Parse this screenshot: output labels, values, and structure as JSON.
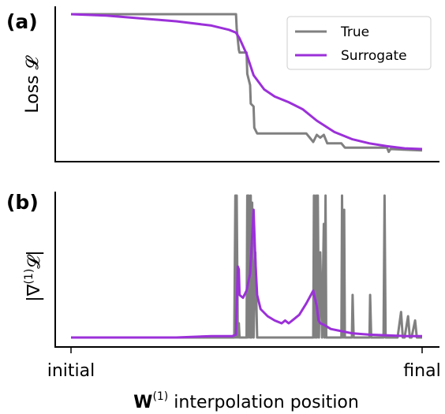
{
  "colors": {
    "true_series": "#808080",
    "surrogate_series": "#9b30d9",
    "axes": "#000000"
  },
  "legend": {
    "position": "top-right",
    "entries": [
      "True",
      "Surrogate"
    ]
  },
  "chart_data": [
    {
      "panel": "(a)",
      "type": "line",
      "ylabel": "Loss 𝓛",
      "x_tick_labels": [],
      "xlim": [
        0,
        1
      ],
      "ylim": [
        0,
        1
      ],
      "grid": false,
      "series": [
        {
          "name": "True",
          "color": "#808080",
          "x": [
            0.0,
            0.47,
            0.472,
            0.478,
            0.48,
            0.5,
            0.502,
            0.51,
            0.512,
            0.52,
            0.522,
            0.53,
            0.6,
            0.67,
            0.69,
            0.7,
            0.71,
            0.72,
            0.73,
            0.75,
            0.77,
            0.78,
            0.8,
            0.9,
            0.905,
            0.91,
            1.0
          ],
          "y": [
            1.0,
            1.0,
            0.9,
            0.75,
            0.73,
            0.73,
            0.58,
            0.5,
            0.37,
            0.35,
            0.2,
            0.16,
            0.16,
            0.16,
            0.1,
            0.15,
            0.13,
            0.15,
            0.09,
            0.09,
            0.09,
            0.06,
            0.06,
            0.06,
            0.03,
            0.05,
            0.04
          ]
        },
        {
          "name": "Surrogate",
          "color": "#9b30d9",
          "x": [
            0.0,
            0.1,
            0.2,
            0.3,
            0.4,
            0.45,
            0.47,
            0.48,
            0.5,
            0.52,
            0.55,
            0.58,
            0.62,
            0.66,
            0.7,
            0.75,
            0.8,
            0.85,
            0.9,
            0.95,
            1.0
          ],
          "y": [
            1.0,
            0.99,
            0.97,
            0.95,
            0.92,
            0.89,
            0.87,
            0.83,
            0.72,
            0.57,
            0.47,
            0.42,
            0.38,
            0.33,
            0.25,
            0.17,
            0.12,
            0.09,
            0.07,
            0.055,
            0.05
          ]
        }
      ]
    },
    {
      "panel": "(b)",
      "type": "line",
      "ylabel": "|∇(1)𝓛|",
      "ylabel_main": "|∇",
      "ylabel_sup": "(1)",
      "ylabel_tail": "𝓛|",
      "x_tick_labels": [
        "initial",
        "final"
      ],
      "xlabel_bold": "W",
      "xlabel_sup": "(1)",
      "xlabel_rest": " interpolation position",
      "xlim": [
        0,
        1
      ],
      "ylim": [
        0,
        1
      ],
      "grid": false,
      "series": [
        {
          "name": "True",
          "color": "#808080",
          "x": [
            0.0,
            0.465,
            0.468,
            0.47,
            0.472,
            0.475,
            0.478,
            0.48,
            0.5,
            0.502,
            0.504,
            0.506,
            0.51,
            0.512,
            0.514,
            0.516,
            0.52,
            0.525,
            0.53,
            0.6,
            0.69,
            0.692,
            0.695,
            0.698,
            0.7,
            0.703,
            0.706,
            0.71,
            0.715,
            0.72,
            0.722,
            0.725,
            0.727,
            0.73,
            0.75,
            0.77,
            0.772,
            0.775,
            0.778,
            0.78,
            0.8,
            0.802,
            0.805,
            0.81,
            0.83,
            0.85,
            0.852,
            0.855,
            0.86,
            0.89,
            0.893,
            0.896,
            0.9,
            0.93,
            0.94,
            0.945,
            0.95,
            0.96,
            0.965,
            0.97,
            0.98,
            0.985,
            0.99,
            1.0
          ],
          "y": [
            0.0,
            0.0,
            1.0,
            0.0,
            1.0,
            0.0,
            0.1,
            0.0,
            0.0,
            1.0,
            0.0,
            1.0,
            0.0,
            1.0,
            0.0,
            0.95,
            0.0,
            0.6,
            0.0,
            0.0,
            0.0,
            1.0,
            0.0,
            1.0,
            0.0,
            1.0,
            0.0,
            0.6,
            0.0,
            0.8,
            0.0,
            1.0,
            0.0,
            0.0,
            0.0,
            0.0,
            1.0,
            0.0,
            0.9,
            0.0,
            0.0,
            0.3,
            0.0,
            0.0,
            0.0,
            0.0,
            0.3,
            0.0,
            0.0,
            0.0,
            1.0,
            0.0,
            0.0,
            0.0,
            0.18,
            0.0,
            0.0,
            0.15,
            0.0,
            0.0,
            0.12,
            0.0,
            0.0,
            0.0
          ]
        },
        {
          "name": "Surrogate",
          "color": "#9b30d9",
          "x": [
            0.0,
            0.1,
            0.2,
            0.3,
            0.4,
            0.46,
            0.47,
            0.475,
            0.478,
            0.48,
            0.49,
            0.5,
            0.51,
            0.52,
            0.525,
            0.53,
            0.54,
            0.56,
            0.58,
            0.6,
            0.61,
            0.62,
            0.63,
            0.65,
            0.67,
            0.69,
            0.7,
            0.705,
            0.71,
            0.72,
            0.74,
            0.76,
            0.78,
            0.8,
            0.85,
            0.9,
            0.95,
            1.0
          ],
          "y": [
            0.0,
            0.0,
            0.0,
            0.0,
            0.01,
            0.01,
            0.02,
            0.5,
            0.48,
            0.3,
            0.28,
            0.33,
            0.45,
            0.9,
            0.55,
            0.3,
            0.2,
            0.15,
            0.12,
            0.1,
            0.12,
            0.1,
            0.12,
            0.16,
            0.24,
            0.33,
            0.22,
            0.12,
            0.1,
            0.09,
            0.06,
            0.05,
            0.04,
            0.03,
            0.02,
            0.015,
            0.01,
            0.01
          ]
        }
      ]
    }
  ]
}
